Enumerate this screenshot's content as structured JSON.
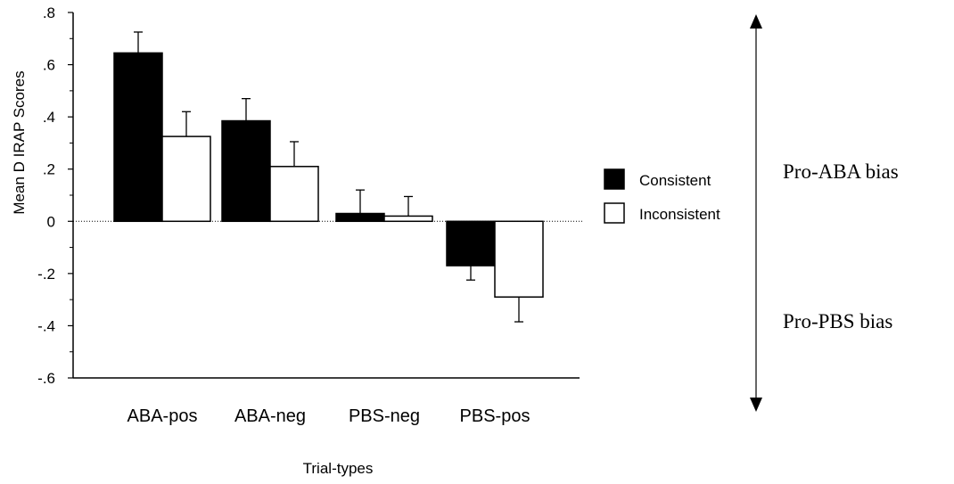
{
  "chart_data": {
    "type": "bar",
    "categories": [
      "ABA-pos",
      "ABA-neg",
      "PBS-neg",
      "PBS-pos"
    ],
    "series": [
      {
        "name": "Consistent",
        "color": "#000000",
        "values": [
          0.645,
          0.385,
          0.03,
          -0.17
        ],
        "errors": [
          0.08,
          0.085,
          0.09,
          0.055
        ]
      },
      {
        "name": "Inconsistent",
        "color": "#ffffff",
        "values": [
          0.325,
          0.21,
          0.02,
          -0.29
        ],
        "errors": [
          0.095,
          0.095,
          0.075,
          0.095
        ]
      }
    ],
    "ylabel": "Mean D IRAP Scores",
    "xlabel": "Trial-types",
    "ylim": [
      -0.6,
      0.8
    ],
    "yticks": [
      0.8,
      0.6,
      0.4,
      0.2,
      0,
      -0.2,
      -0.4,
      -0.6
    ],
    "ytick_labels": [
      ".8",
      ".6",
      ".4",
      ".2",
      "0",
      "-.2",
      "-.4",
      "-.6"
    ],
    "zero_line": "dotted",
    "legend_position": "right",
    "annotations": {
      "upper": "Pro-ABA bias",
      "lower": "Pro-PBS bias",
      "arrow": "double-headed vertical"
    }
  }
}
